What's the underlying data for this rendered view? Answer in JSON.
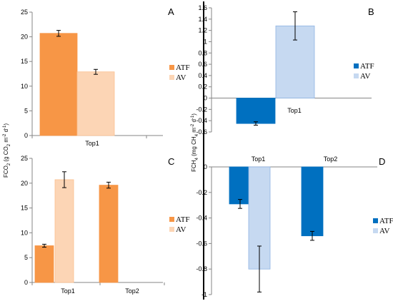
{
  "colors": {
    "atf_orange": "#F79646",
    "av_orange": "#FCD5B5",
    "atf_blue": "#0070C0",
    "av_blue": "#C6D9F1",
    "divider": "#000000"
  },
  "y_axis_labels": {
    "left": [
      "FCO",
      "2",
      " (g CO",
      "2",
      " m",
      "-2",
      " d",
      "-1",
      ")"
    ],
    "right": [
      "FCH",
      "4",
      " (mg CH",
      "4",
      " m",
      "-2",
      " d",
      "-1",
      ")"
    ]
  },
  "chart_data": [
    {
      "panel": "A",
      "type": "bar",
      "categories": [
        "Top1"
      ],
      "series": [
        {
          "name": "ATF",
          "values": [
            20.7
          ],
          "errors": [
            0.6
          ],
          "color": "#F79646"
        },
        {
          "name": "AV",
          "values": [
            12.9
          ],
          "errors": [
            0.5
          ],
          "color": "#FCD5B5"
        }
      ],
      "ylim": [
        0,
        25
      ],
      "yticks": [
        0,
        5,
        10,
        15,
        20,
        25
      ],
      "legend": "right"
    },
    {
      "panel": "B",
      "type": "bar",
      "categories": [
        "Top1"
      ],
      "series": [
        {
          "name": "ATF",
          "values": [
            -0.45
          ],
          "errors": [
            0.03
          ],
          "color": "#0070C0"
        },
        {
          "name": "AV",
          "values": [
            1.28
          ],
          "errors": [
            0.25
          ],
          "color": "#C6D9F1"
        }
      ],
      "ylim": [
        -0.6,
        1.6
      ],
      "yticks": [
        -0.6,
        -0.4,
        -0.2,
        0,
        0.2,
        0.4,
        0.6,
        0.8,
        1,
        1.2,
        1.4,
        1.6
      ],
      "legend": "right"
    },
    {
      "panel": "C",
      "type": "bar",
      "categories": [
        "Top1",
        "Top2"
      ],
      "series": [
        {
          "name": "ATF",
          "values": [
            7.4,
            19.6
          ],
          "errors": [
            0.3,
            0.6
          ],
          "color": "#F79646"
        },
        {
          "name": "AV",
          "values": [
            20.7,
            null
          ],
          "errors": [
            1.6,
            null
          ],
          "color": "#FCD5B5"
        }
      ],
      "ylim": [
        0,
        25
      ],
      "yticks": [
        0,
        5,
        10,
        15,
        20,
        25
      ],
      "legend": "right"
    },
    {
      "panel": "D",
      "type": "bar",
      "categories": [
        "Top1",
        "Top2"
      ],
      "series": [
        {
          "name": "ATF",
          "values": [
            -0.29,
            -0.54
          ],
          "errors": [
            0.035,
            0.035
          ],
          "color": "#0070C0"
        },
        {
          "name": "AV",
          "values": [
            -0.8,
            null
          ],
          "errors": [
            0.18,
            null
          ],
          "color": "#C6D9F1"
        }
      ],
      "ylim": [
        -1,
        0
      ],
      "yticks": [
        -1,
        -0.8,
        -0.6,
        -0.4,
        -0.2,
        0
      ],
      "legend": "right"
    }
  ]
}
